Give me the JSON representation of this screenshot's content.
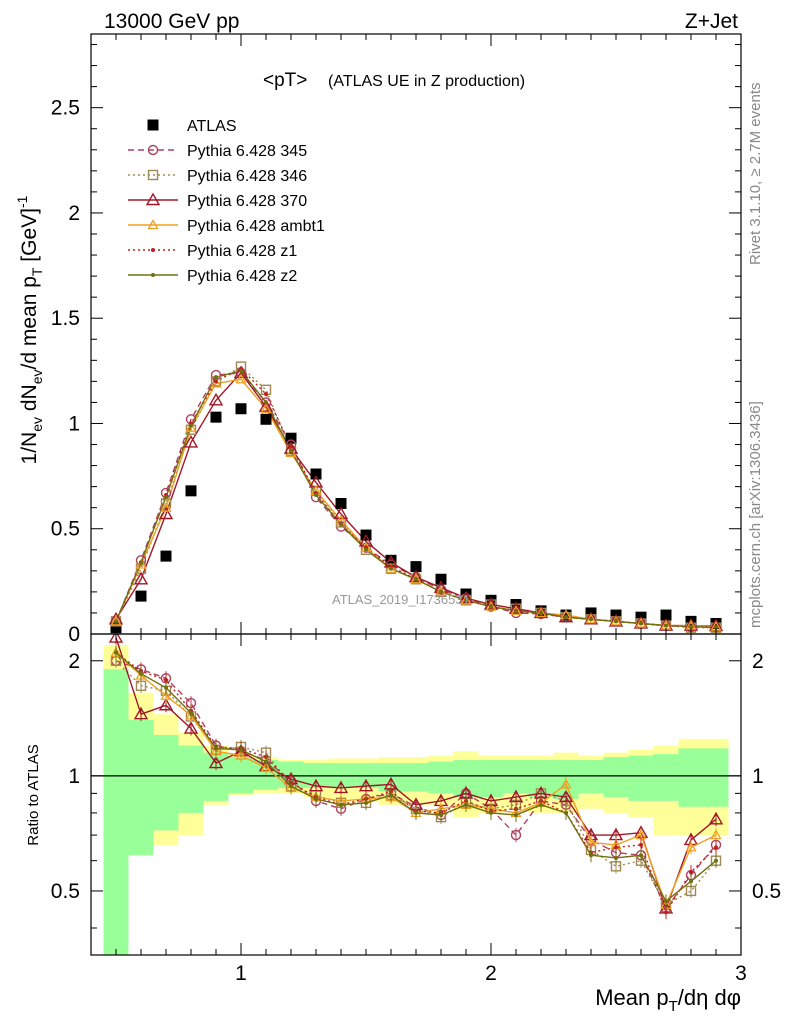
{
  "header": {
    "left": "13000 GeV pp",
    "right": "Z+Jet"
  },
  "plot_title": {
    "main": "<pT>",
    "sub": "(ATLAS UE in Z production)"
  },
  "side_labels": {
    "rivet": "Rivet 3.1.10, ≥ 2.7M events",
    "mcplots": "mcplots.cern.ch [arXiv:1306.3436]"
  },
  "watermark": "ATLAS_2019_I1736531",
  "colors": {
    "ATLAS": "#000000",
    "345": "#b04060",
    "346": "#a08850",
    "370": "#a01828",
    "ambt1": "#f0a020",
    "z1": "#c02020",
    "z2": "#707010",
    "band_inner": "#99ff99",
    "band_outer": "#ffff99"
  },
  "chart_data": [
    {
      "type": "scatter",
      "title": "<pT> (ATLAS UE in Z production)",
      "ylabel_parts": [
        "1/N",
        "ev",
        " dN",
        "ev",
        "/d mean p",
        "T",
        " [GeV]",
        "-1"
      ],
      "xlim": [
        0.4,
        3.0
      ],
      "ylim": [
        0,
        2.85
      ],
      "yticks": [
        0,
        0.5,
        1,
        1.5,
        2,
        2.5
      ],
      "ytick_labels": [
        "0",
        "0.5",
        "1",
        "1.5",
        "2",
        "2.5"
      ],
      "legend_position": "top-left",
      "x": [
        0.5,
        0.6,
        0.7,
        0.8,
        0.9,
        1.0,
        1.1,
        1.2,
        1.3,
        1.4,
        1.5,
        1.6,
        1.7,
        1.8,
        1.9,
        2.0,
        2.1,
        2.2,
        2.3,
        2.4,
        2.5,
        2.6,
        2.7,
        2.8,
        2.9
      ],
      "series": [
        {
          "name": "ATLAS",
          "key": "ATLAS",
          "marker": "square",
          "line": "none",
          "values": [
            0.03,
            0.18,
            0.37,
            0.68,
            1.03,
            1.07,
            1.02,
            0.93,
            0.76,
            0.62,
            0.47,
            0.35,
            0.32,
            0.26,
            0.19,
            0.16,
            0.14,
            0.11,
            0.09,
            0.1,
            0.09,
            0.08,
            0.09,
            0.06,
            0.05
          ]
        },
        {
          "name": "Pythia 6.428 345",
          "key": "345",
          "marker": "circle",
          "line": "dashed",
          "values": [
            0.06,
            0.35,
            0.67,
            1.02,
            1.23,
            1.24,
            1.1,
            0.9,
            0.65,
            0.51,
            0.41,
            0.33,
            0.27,
            0.21,
            0.17,
            0.13,
            0.1,
            0.095,
            0.08,
            0.07,
            0.06,
            0.05,
            0.04,
            0.033,
            0.033
          ]
        },
        {
          "name": "Pythia 6.428 346",
          "key": "346",
          "marker": "square-open",
          "line": "dotted",
          "values": [
            0.06,
            0.31,
            0.62,
            0.97,
            1.2,
            1.27,
            1.16,
            0.87,
            0.68,
            0.53,
            0.4,
            0.31,
            0.26,
            0.2,
            0.16,
            0.14,
            0.12,
            0.1,
            0.08,
            0.07,
            0.06,
            0.05,
            0.04,
            0.03,
            0.03
          ]
        },
        {
          "name": "Pythia 6.428 370",
          "key": "370",
          "marker": "triangle-open",
          "line": "solid",
          "values": [
            0.07,
            0.26,
            0.57,
            0.91,
            1.11,
            1.24,
            1.08,
            0.88,
            0.72,
            0.57,
            0.44,
            0.34,
            0.27,
            0.22,
            0.17,
            0.14,
            0.12,
            0.1,
            0.08,
            0.07,
            0.06,
            0.05,
            0.04,
            0.04,
            0.038
          ]
        },
        {
          "name": "Pythia 6.428 ambt1",
          "key": "ambt1",
          "marker": "triangle-small",
          "line": "solid",
          "values": [
            0.06,
            0.33,
            0.6,
            0.98,
            1.19,
            1.21,
            1.07,
            0.86,
            0.68,
            0.54,
            0.41,
            0.31,
            0.26,
            0.2,
            0.16,
            0.13,
            0.11,
            0.1,
            0.09,
            0.07,
            0.06,
            0.05,
            0.04,
            0.04,
            0.035
          ]
        },
        {
          "name": "Pythia 6.428 z1",
          "key": "z1",
          "marker": "dot",
          "line": "dotted",
          "values": [
            0.06,
            0.34,
            0.66,
            1.0,
            1.2,
            1.26,
            1.14,
            0.89,
            0.67,
            0.52,
            0.41,
            0.32,
            0.26,
            0.2,
            0.16,
            0.13,
            0.11,
            0.095,
            0.08,
            0.07,
            0.06,
            0.05,
            0.04,
            0.035,
            0.033
          ]
        },
        {
          "name": "Pythia 6.428 z2",
          "key": "z2",
          "marker": "dot",
          "line": "solid",
          "values": [
            0.06,
            0.34,
            0.65,
            0.99,
            1.22,
            1.25,
            1.1,
            0.87,
            0.66,
            0.52,
            0.4,
            0.31,
            0.26,
            0.2,
            0.16,
            0.13,
            0.11,
            0.1,
            0.08,
            0.07,
            0.06,
            0.05,
            0.04,
            0.035,
            0.03
          ]
        }
      ]
    },
    {
      "type": "line",
      "ylabel": "Ratio to ATLAS",
      "xlabel_parts": [
        "Mean p",
        "T",
        "/dη dφ"
      ],
      "xlim": [
        0.4,
        3.0
      ],
      "ylim": [
        0.34,
        2.35
      ],
      "xticks": [
        1,
        2,
        3
      ],
      "xtick_labels": [
        "1",
        "2",
        "3"
      ],
      "yticks": [
        0.5,
        1,
        2
      ],
      "ytick_labels": [
        "0.5",
        "1",
        "2"
      ],
      "reference_line": 1,
      "x": [
        0.5,
        0.6,
        0.7,
        0.8,
        0.9,
        1.0,
        1.1,
        1.2,
        1.3,
        1.4,
        1.5,
        1.6,
        1.7,
        1.8,
        1.9,
        2.0,
        2.1,
        2.2,
        2.3,
        2.4,
        2.5,
        2.6,
        2.7,
        2.8,
        2.9
      ],
      "uncertainty_bands": {
        "inner_low": [
          0.3,
          0.62,
          0.72,
          0.8,
          0.86,
          0.9,
          0.92,
          0.93,
          0.93,
          0.93,
          0.93,
          0.91,
          0.91,
          0.9,
          0.88,
          0.88,
          0.9,
          0.88,
          0.87,
          0.9,
          0.88,
          0.86,
          0.86,
          0.83,
          0.83
        ],
        "inner_high": [
          1.9,
          1.4,
          1.28,
          1.2,
          1.15,
          1.12,
          1.1,
          1.09,
          1.08,
          1.08,
          1.08,
          1.08,
          1.08,
          1.09,
          1.1,
          1.1,
          1.1,
          1.1,
          1.1,
          1.1,
          1.12,
          1.13,
          1.14,
          1.18,
          1.18
        ],
        "outer_low": [
          0.3,
          0.64,
          0.66,
          0.7,
          0.84,
          0.89,
          0.9,
          0.9,
          0.88,
          0.87,
          0.86,
          0.84,
          0.84,
          0.84,
          0.78,
          0.8,
          0.82,
          0.8,
          0.8,
          0.82,
          0.8,
          0.78,
          0.7,
          0.7,
          0.7
        ],
        "outer_high": [
          2.2,
          1.65,
          1.45,
          1.3,
          1.2,
          1.14,
          1.12,
          1.1,
          1.1,
          1.11,
          1.11,
          1.12,
          1.12,
          1.13,
          1.16,
          1.13,
          1.13,
          1.13,
          1.15,
          1.13,
          1.15,
          1.17,
          1.2,
          1.25,
          1.25
        ]
      },
      "series": [
        {
          "name": "Pythia 6.428 345",
          "key": "345",
          "values": [
            2.0,
            1.9,
            1.8,
            1.55,
            1.2,
            1.16,
            1.1,
            0.97,
            0.86,
            0.82,
            0.87,
            0.9,
            0.83,
            0.79,
            0.9,
            0.82,
            0.7,
            0.86,
            0.84,
            0.68,
            0.63,
            0.62,
            0.45,
            0.55,
            0.66
          ]
        },
        {
          "name": "Pythia 6.428 346",
          "key": "346",
          "values": [
            2.0,
            1.72,
            1.67,
            1.43,
            1.17,
            1.19,
            1.15,
            0.94,
            0.89,
            0.85,
            0.85,
            0.89,
            0.82,
            0.78,
            0.85,
            0.82,
            0.84,
            0.9,
            0.86,
            0.64,
            0.58,
            0.6,
            0.46,
            0.5,
            0.6
          ]
        },
        {
          "name": "Pythia 6.428 370",
          "key": "370",
          "values": [
            2.3,
            1.45,
            1.53,
            1.33,
            1.08,
            1.16,
            1.06,
            0.98,
            0.94,
            0.93,
            0.94,
            0.95,
            0.84,
            0.86,
            0.9,
            0.86,
            0.88,
            0.9,
            0.88,
            0.7,
            0.7,
            0.71,
            0.45,
            0.68,
            0.77
          ]
        },
        {
          "name": "Pythia 6.428 ambt1",
          "key": "ambt1",
          "values": [
            2.1,
            1.83,
            1.62,
            1.44,
            1.16,
            1.13,
            1.05,
            0.93,
            0.88,
            0.86,
            0.87,
            0.88,
            0.8,
            0.82,
            0.84,
            0.82,
            0.8,
            0.85,
            0.95,
            0.67,
            0.66,
            0.7,
            0.46,
            0.65,
            0.7
          ]
        },
        {
          "name": "Pythia 6.428 z1",
          "key": "z1",
          "values": [
            2.1,
            1.88,
            1.78,
            1.48,
            1.19,
            1.18,
            1.12,
            0.96,
            0.88,
            0.84,
            0.87,
            0.91,
            0.81,
            0.8,
            0.86,
            0.81,
            0.82,
            0.86,
            0.8,
            0.63,
            0.65,
            0.66,
            0.44,
            0.56,
            0.65
          ]
        },
        {
          "name": "Pythia 6.428 z2",
          "key": "z2",
          "values": [
            2.1,
            1.85,
            1.7,
            1.46,
            1.18,
            1.17,
            1.09,
            0.94,
            0.87,
            0.84,
            0.85,
            0.89,
            0.8,
            0.79,
            0.84,
            0.8,
            0.79,
            0.84,
            0.8,
            0.62,
            0.61,
            0.62,
            0.47,
            0.53,
            0.6
          ]
        }
      ]
    }
  ]
}
